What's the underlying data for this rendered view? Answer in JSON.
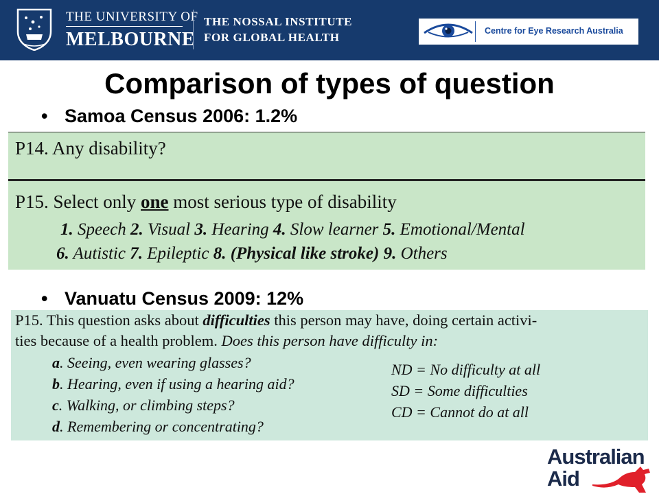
{
  "header": {
    "university_top": "THE UNIVERSITY OF",
    "university_bottom": "MELBOURNE",
    "institute_line1": "THE NOSSAL INSTITUTE",
    "institute_line2": "FOR GLOBAL HEALTH",
    "partner": "Centre for Eye Research Australia"
  },
  "slide": {
    "title": "Comparison of types of question",
    "bullet1": "Samoa Census 2006: 1.2%",
    "bullet2": "Vanuatu Census 2009: 12%"
  },
  "samoa": {
    "p14": "P14.   Any disability?",
    "p15_pre": "P15.  Select only ",
    "p15_emph": "one",
    "p15_post": " most serious type of disability",
    "opts_line1": {
      "n1": "1.",
      "o1": " Speech  ",
      "n2": "2.",
      "o2": " Visual    ",
      "n3": "3.",
      "o3": " Hearing    ",
      "n4": "4.",
      "o4": " Slow learner  ",
      "n5": "5.",
      "o5": " Emotional/Mental"
    },
    "opts_line2": {
      "n6": "6.",
      "o6": "   Autistic    ",
      "n7": "7.",
      "o7": "  Epileptic   ",
      "n8": "8. (Physical like stroke)",
      "o8": "  ",
      "n9": "9.",
      "o9": " Others"
    }
  },
  "vanuatu": {
    "line1_pre": "P15.  This question asks about ",
    "line1_emph": "difficulties",
    "line1_post": " this person may have,  doing certain activi-",
    "line2_pre": "ties because of a health problem. ",
    "line2_italic": "Does this person have difficulty in:",
    "items": [
      {
        "letter": "a",
        "text": ". Seeing, even wearing glasses?"
      },
      {
        "letter": "b",
        "text": ". Hearing, even if using a hearing aid?"
      },
      {
        "letter": "c",
        "text": ". Walking, or climbing steps?"
      },
      {
        "letter": "d",
        "text": ". Remembering or concentrating?"
      }
    ],
    "key": [
      "ND = No difficulty at all",
      "SD = Some difficulties",
      "CD = Cannot do at all"
    ]
  },
  "footer": {
    "logo_line1": "Australian",
    "logo_line2": "Aid"
  },
  "colors": {
    "header_bg": "#163a6d",
    "samoa_panel": "#c9e6c8",
    "vanuatu_panel": "#cde8dc",
    "kangaroo": "#e0202a"
  }
}
